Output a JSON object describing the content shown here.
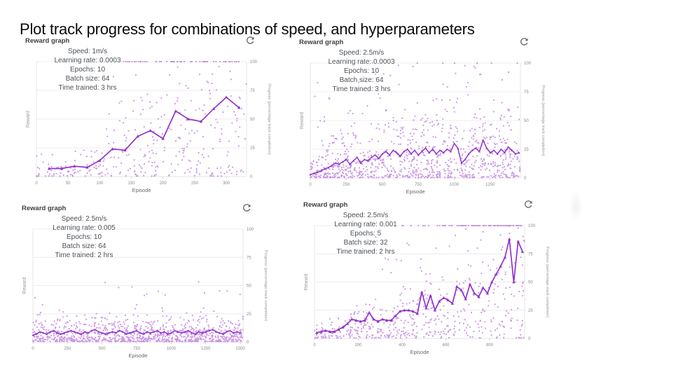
{
  "page": {
    "title": "Plot track progress for combinations of speed, and hyperparameters",
    "icons": {
      "refresh": "circular-refresh-arrow"
    }
  },
  "colors": {
    "line": "#9333cc",
    "scatter": "#b36ad9",
    "grid": "#ececec",
    "axis_border": "#e6e6e6",
    "tick_text": "#8a8a8a",
    "annotation_text": "#4d5156",
    "header_text": "#3c4043",
    "icon": "#5f6368"
  },
  "chart_data": [
    {
      "type": "scatter",
      "title": "Reward graph",
      "annotation": [
        "Speed: 1m/s",
        "Learning rate: 0.0003",
        "Epochs: 10",
        "Batch size: 64",
        "Time trained: 3 hrs"
      ],
      "xlabel": "Episode",
      "ylabel": "Reward",
      "y2label": "Progress (percentage track completion)",
      "xlim": [
        0,
        332
      ],
      "ylim": [
        0,
        100
      ],
      "x_ticks": [
        0,
        50,
        100,
        150,
        200,
        250,
        300
      ],
      "y2_ticks": [
        0,
        25,
        50,
        75,
        100
      ],
      "grid": true,
      "line": {
        "x0": 20,
        "dx": 20,
        "y": [
          7,
          7,
          9,
          8,
          14,
          24,
          23,
          35,
          40,
          33,
          57,
          50,
          48,
          59,
          69,
          60
        ]
      },
      "scatter_hint": {
        "seed": 7,
        "cloud": {
          "count": 290,
          "base": 12,
          "trend_mul": 1.8
        },
        "outliers": {
          "count": 38,
          "x_from": 90,
          "y_min": 28,
          "y_max": 97,
          "pow": 1
        },
        "top_row": {
          "count": 70,
          "x_from": 95,
          "bias": 1
        }
      }
    },
    {
      "type": "scatter",
      "title": "Reward graph",
      "annotation": [
        "Speed: 2.5m/s",
        "Learning rate: 0.0003",
        "Epochs: 10",
        "Batch size: 64",
        "Time trained: 3 hrs"
      ],
      "xlabel": "Episode",
      "ylabel": "Reward",
      "y2label": "Progress (percentage track completion)",
      "xlim": [
        0,
        1460
      ],
      "ylim": [
        0,
        100
      ],
      "x_ticks": [
        0,
        250,
        500,
        750,
        1000,
        1250
      ],
      "y2_ticks": [
        0,
        25,
        50,
        75,
        100
      ],
      "grid": true,
      "line": {
        "x0": 0,
        "dx": 25,
        "y": [
          3,
          4,
          5,
          6,
          8,
          9,
          11,
          13,
          12,
          14,
          16,
          12,
          15,
          18,
          13,
          16,
          15,
          18,
          20,
          17,
          21,
          23,
          20,
          24,
          22,
          19,
          23,
          25,
          21,
          24,
          20,
          23,
          26,
          22,
          25,
          21,
          24,
          22,
          25,
          23,
          30,
          26,
          13,
          16,
          21,
          24,
          26,
          23,
          33,
          26,
          22,
          24,
          21,
          25,
          22,
          27,
          24,
          21,
          22
        ]
      },
      "scatter_hint": {
        "seed": 13,
        "cloud": {
          "count": 850,
          "base": 16,
          "trend_mul": 2.4
        },
        "outliers": {
          "count": 80,
          "x_from": 0,
          "y_min": 30,
          "y_max": 100,
          "pow": 1.6
        },
        "top_row": {
          "count": 10,
          "x_from": 100,
          "bias": 1
        }
      }
    },
    {
      "type": "scatter",
      "title": "Reward graph",
      "annotation": [
        "Speed: 2.5m/s",
        "Learning rate: 0.005",
        "Epochs: 10",
        "Batch size: 64",
        "Time trained: 2 hrs"
      ],
      "xlabel": "Episode",
      "ylabel": "Reward",
      "y2label": "Progress (percentage track completion)",
      "xlim": [
        0,
        1520
      ],
      "ylim": [
        0,
        100
      ],
      "x_ticks": [
        0,
        250,
        500,
        750,
        1000,
        1250,
        1500
      ],
      "y2_ticks": [
        0,
        25,
        50,
        75,
        100
      ],
      "grid": true,
      "line": {
        "x0": 0,
        "dx": 25,
        "y": [
          6,
          7,
          9,
          8,
          7,
          9,
          10,
          8,
          7,
          8,
          9,
          10,
          9,
          8,
          7,
          9,
          8,
          10,
          11,
          9,
          8,
          7,
          8,
          9,
          8,
          10,
          9,
          7,
          8,
          9,
          10,
          8,
          7,
          9,
          8,
          9,
          10,
          8,
          9,
          7,
          8,
          10,
          9,
          8,
          9,
          10,
          8,
          7,
          9,
          8,
          9,
          10,
          11,
          9,
          8,
          7,
          9,
          10,
          8,
          9,
          8
        ]
      },
      "scatter_hint": {
        "seed": 21,
        "cloud": {
          "count": 950,
          "base": 20,
          "trend_mul": 0.8
        },
        "outliers": {
          "count": 32,
          "x_from": 0,
          "y_min": 18,
          "y_max": 55,
          "pow": 1.3
        },
        "top_row": {
          "count": 0,
          "x_from": 0,
          "bias": 1
        }
      }
    },
    {
      "type": "scatter",
      "title": "Reward graph",
      "annotation": [
        "Speed: 2.5m/s",
        "Learning rate: 0.001",
        "Epochs: 5",
        "Batch size: 32",
        "Time trained: 2 hrs"
      ],
      "xlabel": "Episode",
      "ylabel": "Reward",
      "y2label": "Progress (percentage track completion)",
      "xlim": [
        0,
        960
      ],
      "ylim": [
        0,
        100
      ],
      "x_ticks": [
        0,
        200,
        400,
        600,
        800
      ],
      "y2_ticks": [
        0,
        25,
        50,
        75,
        100
      ],
      "grid": true,
      "line": {
        "x0": 10,
        "dx": 20,
        "y": [
          5,
          6,
          7,
          6,
          6,
          8,
          10,
          13,
          17,
          16,
          15,
          16,
          23,
          17,
          15,
          17,
          16,
          16,
          20,
          24,
          25,
          25,
          24,
          22,
          41,
          27,
          38,
          25,
          33,
          36,
          34,
          31,
          46,
          43,
          35,
          48,
          40,
          37,
          45,
          40,
          50,
          57,
          64,
          72,
          88,
          50,
          86,
          77
        ]
      },
      "scatter_hint": {
        "seed": 29,
        "cloud": {
          "count": 430,
          "base": 12,
          "trend_mul": 1.7
        },
        "outliers": {
          "count": 55,
          "x_from": 250,
          "y_min": 28,
          "y_max": 97,
          "pow": 1.2
        },
        "top_row": {
          "count": 85,
          "x_from": 350,
          "bias": 0.55
        }
      }
    }
  ]
}
